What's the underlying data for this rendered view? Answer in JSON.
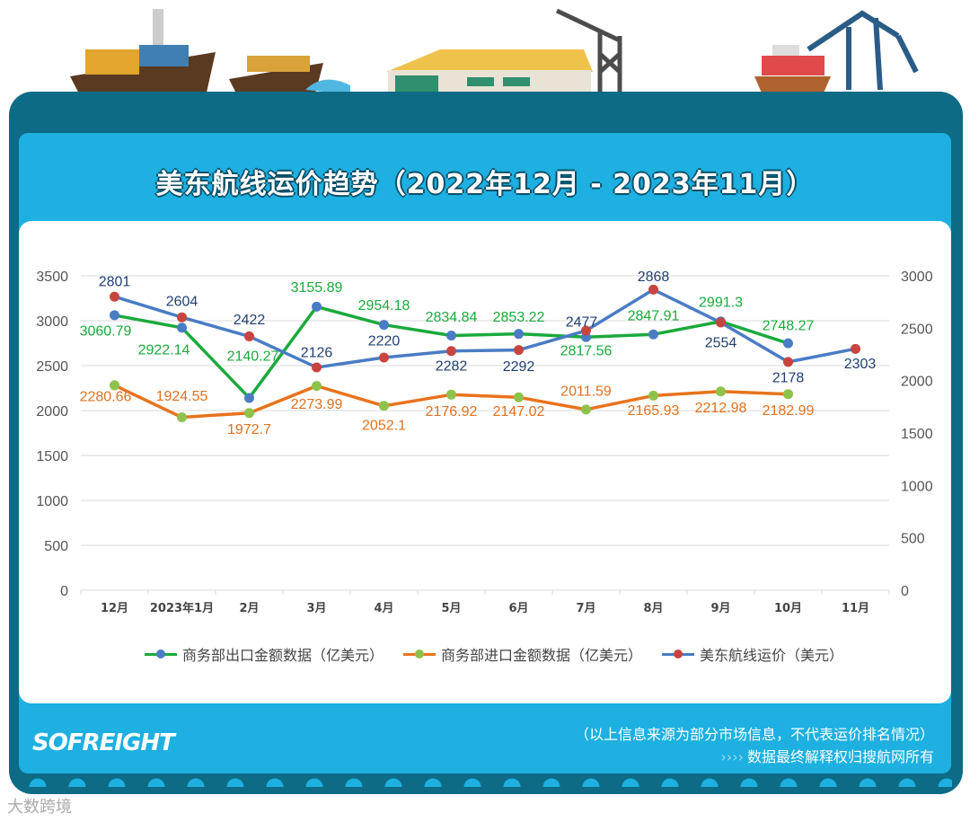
{
  "title": "美东航线运价趋势（2022年12月 - 2023年11月）",
  "chart_data": {
    "type": "line",
    "title": "美东航线运价趋势（2022年12月 - 2023年11月）",
    "categories": [
      "12月",
      "2023年1月",
      "2月",
      "3月",
      "4月",
      "5月",
      "6月",
      "7月",
      "8月",
      "9月",
      "10月",
      "11月"
    ],
    "y_left": {
      "range": [
        0,
        3500
      ],
      "ticks": [
        0,
        500,
        1000,
        1500,
        2000,
        2500,
        3000,
        3500
      ]
    },
    "y_right": {
      "range": [
        0,
        3000
      ],
      "ticks": [
        0,
        500,
        1000,
        1500,
        2000,
        2500,
        3000
      ]
    },
    "grid": true,
    "legend_position": "bottom",
    "series": [
      {
        "name": "商务部出口金额数据（亿美元）",
        "axis": "left",
        "line_color": "#1aaa3c",
        "marker_color": "#4a7cc4",
        "values": [
          3060.79,
          2922.14,
          2140.27,
          3155.89,
          2954.18,
          2834.84,
          2853.22,
          2817.56,
          2847.91,
          2991.3,
          2748.27,
          null
        ]
      },
      {
        "name": "商务部进口金额数据（亿美元）",
        "axis": "left",
        "line_color": "#e8731c",
        "marker_color": "#8fc24a",
        "values": [
          2280.66,
          1924.55,
          1972.7,
          2273.99,
          2052.1,
          2176.92,
          2147.02,
          2011.59,
          2165.93,
          2212.98,
          2182.99,
          null
        ]
      },
      {
        "name": "美东航线运价（美元）",
        "axis": "right",
        "line_color": "#4a7cc4",
        "marker_color": "#c8443f",
        "values": [
          2801,
          2604,
          2422,
          2126,
          2220,
          2282,
          2292,
          2477,
          2868,
          2554,
          2178,
          2303
        ]
      }
    ]
  },
  "label_colors": {
    "0": "#1aaa3c",
    "1": "#e07020",
    "2": "#1f3f73"
  },
  "footer": {
    "logo": "SOFREIGHT",
    "note": "（以上信息来源为部分市场信息，不代表运价排名情况）",
    "arrows": "››››",
    "rights": "数据最终解释权归搜航网所有"
  },
  "watermark": "大数跨境"
}
